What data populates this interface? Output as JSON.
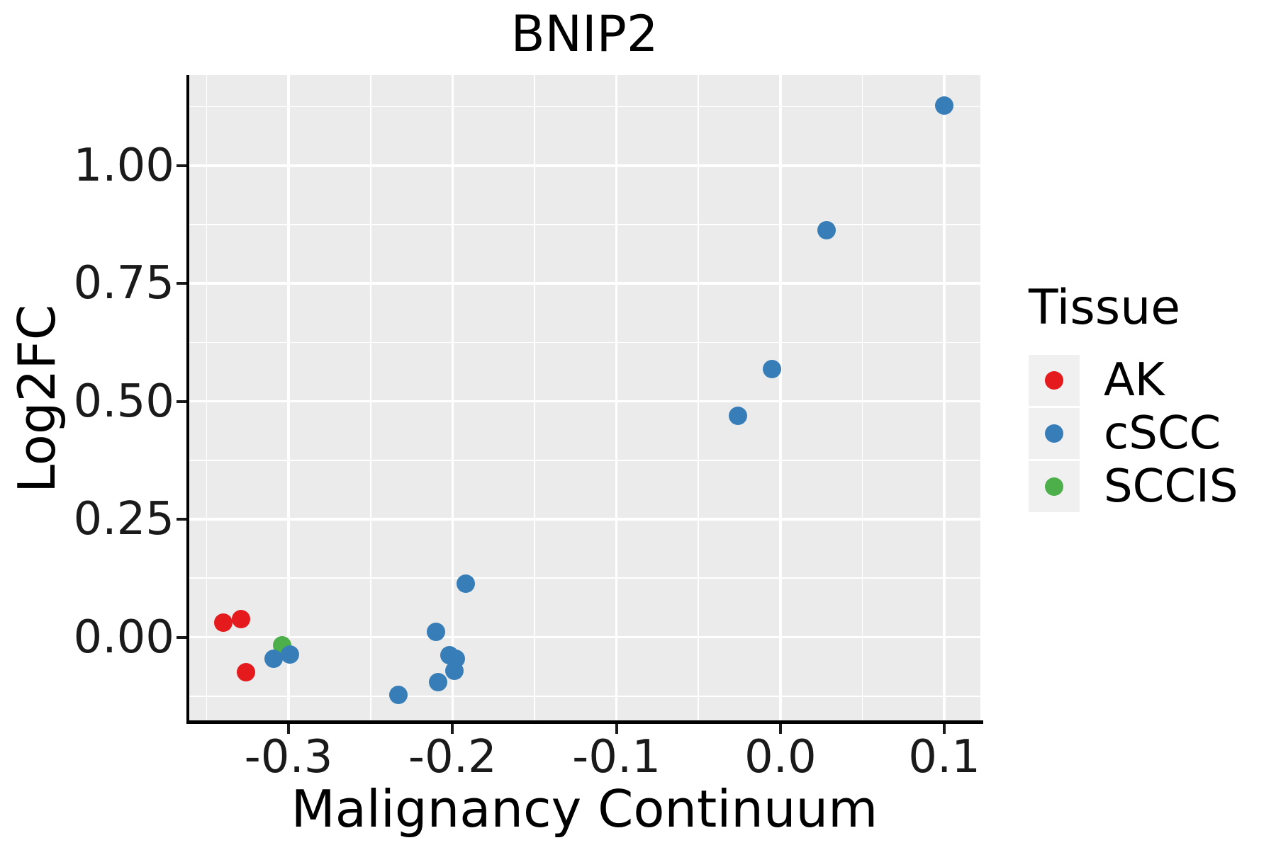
{
  "title": "BNIP2",
  "axes": {
    "x": {
      "label": "Malignancy Continuum",
      "range": [
        -0.361,
        0.122
      ],
      "major_ticks": [
        -0.3,
        -0.2,
        -0.1,
        0.0,
        0.1
      ],
      "tick_labels": [
        "-0.3",
        "-0.2",
        "-0.1",
        "0.0",
        "0.1"
      ],
      "minor_ticks": [
        -0.35,
        -0.25,
        -0.15,
        -0.05,
        0.05
      ]
    },
    "y": {
      "label": "Log2FC",
      "range": [
        -0.181,
        1.192
      ],
      "major_ticks": [
        0.0,
        0.25,
        0.5,
        0.75,
        1.0
      ],
      "tick_labels": [
        "0.00",
        "0.25",
        "0.50",
        "0.75",
        "1.00"
      ],
      "minor_ticks": [
        -0.125,
        0.125,
        0.375,
        0.625,
        0.875,
        1.125
      ]
    }
  },
  "legend": {
    "title": "Tissue",
    "entries": [
      {
        "label": "AK",
        "color": "#E41A1C"
      },
      {
        "label": "cSCC",
        "color": "#377EB8"
      },
      {
        "label": "SCCIS",
        "color": "#4DAF4A"
      }
    ]
  },
  "colors": {
    "panel_background": "#EBEBEB",
    "gridline": "#FFFFFF",
    "axis": "#000000",
    "ak_red": "#E41A1C",
    "cscc_blue": "#377EB8",
    "sccis_green": "#4DAF4A"
  },
  "chart_data": {
    "type": "scatter",
    "title": "BNIP2",
    "xlabel": "Malignancy Continuum",
    "ylabel": "Log2FC",
    "xlim": [
      -0.361,
      0.122
    ],
    "ylim": [
      -0.181,
      1.192
    ],
    "grid": true,
    "legend_position": "right",
    "series": [
      {
        "name": "AK",
        "color": "#E41A1C",
        "points": [
          [
            -0.34,
            0.031
          ],
          [
            -0.329,
            0.039
          ],
          [
            -0.326,
            -0.075
          ]
        ]
      },
      {
        "name": "SCCIS",
        "color": "#4DAF4A",
        "points": [
          [
            -0.304,
            -0.017
          ]
        ]
      },
      {
        "name": "cSCC",
        "color": "#377EB8",
        "points": [
          [
            -0.309,
            -0.046
          ],
          [
            -0.299,
            -0.037
          ],
          [
            -0.233,
            -0.122
          ],
          [
            -0.21,
            0.011
          ],
          [
            -0.209,
            -0.096
          ],
          [
            -0.202,
            -0.039
          ],
          [
            -0.198,
            -0.046
          ],
          [
            -0.199,
            -0.072
          ],
          [
            -0.192,
            0.114
          ],
          [
            -0.026,
            0.47
          ],
          [
            -0.005,
            0.568
          ],
          [
            0.028,
            0.863
          ],
          [
            0.1,
            1.127
          ]
        ]
      }
    ]
  }
}
